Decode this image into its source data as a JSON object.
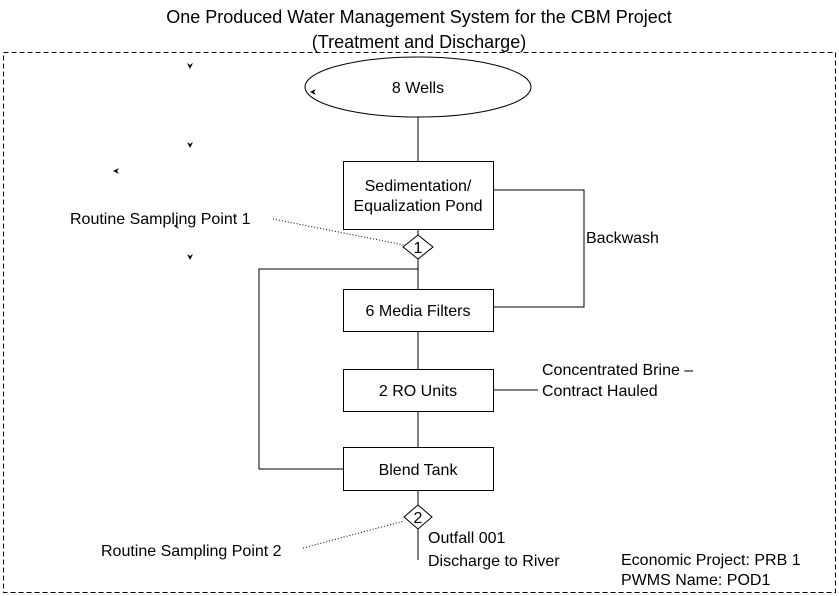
{
  "title": {
    "line1": "One Produced Water Management System for the CBM Project",
    "line2": "(Treatment and Discharge)"
  },
  "nodes": {
    "wells": "8 Wells",
    "sedimentation": {
      "line1": "Sedimentation/",
      "line2": "Equalization Pond"
    },
    "filters": "6 Media Filters",
    "ro": "2 RO Units",
    "blend": "Blend Tank"
  },
  "sampling": {
    "point1_marker": "1",
    "point1_label": "Routine Sampling Point 1",
    "point2_marker": "2",
    "point2_label": "Routine Sampling Point 2"
  },
  "labels": {
    "backwash": "Backwash",
    "brine_line1": "Concentrated Brine –",
    "brine_line2": "Contract Hauled",
    "outfall_line1": "Outfall 001",
    "outfall_line2": "Discharge to River"
  },
  "info": {
    "project": "Economic Project: PRB 1",
    "pwms": "PWMS Name:  POD1"
  }
}
